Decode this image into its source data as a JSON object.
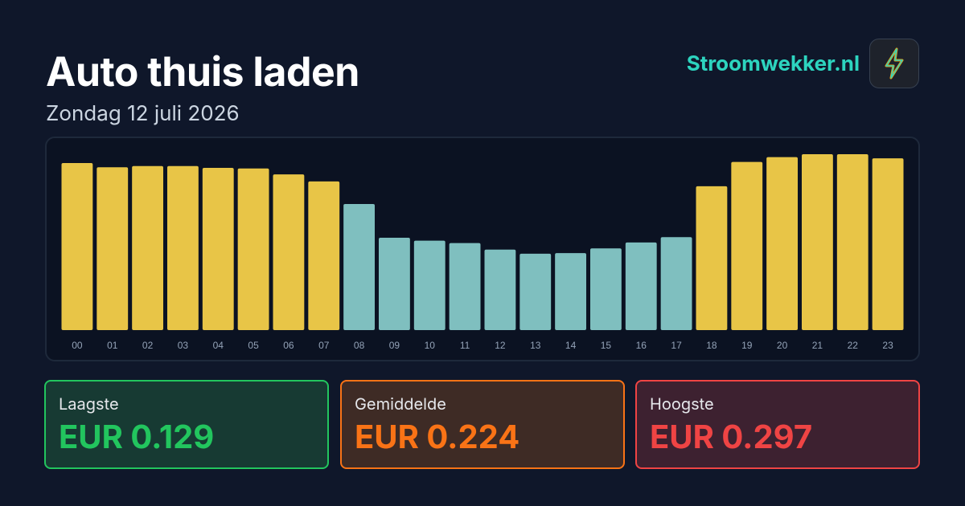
{
  "header": {
    "title": "Auto thuis laden",
    "subtitle": "Zondag 12 juli 2026",
    "brand": "Stroomwekker.nl"
  },
  "chart_data": {
    "type": "bar",
    "categories": [
      "00",
      "01",
      "02",
      "03",
      "04",
      "05",
      "06",
      "07",
      "08",
      "09",
      "10",
      "11",
      "12",
      "13",
      "14",
      "15",
      "16",
      "17",
      "18",
      "19",
      "20",
      "21",
      "22",
      "23"
    ],
    "values": [
      0.282,
      0.275,
      0.277,
      0.277,
      0.274,
      0.273,
      0.263,
      0.251,
      0.213,
      0.156,
      0.151,
      0.147,
      0.136,
      0.129,
      0.13,
      0.138,
      0.148,
      0.157,
      0.243,
      0.284,
      0.292,
      0.297,
      0.297,
      0.29
    ],
    "colors": [
      "#e8c547",
      "#e8c547",
      "#e8c547",
      "#e8c547",
      "#e8c547",
      "#e8c547",
      "#e8c547",
      "#e8c547",
      "#7fbfbf",
      "#7fbfbf",
      "#7fbfbf",
      "#7fbfbf",
      "#7fbfbf",
      "#7fbfbf",
      "#7fbfbf",
      "#7fbfbf",
      "#7fbfbf",
      "#7fbfbf",
      "#e8c547",
      "#e8c547",
      "#e8c547",
      "#e8c547",
      "#e8c547",
      "#e8c547"
    ]
  },
  "stats": [
    {
      "label": "Laagste",
      "value": "EUR 0.129"
    },
    {
      "label": "Gemiddelde",
      "value": "EUR 0.224"
    },
    {
      "label": "Hoogste",
      "value": "EUR 0.297"
    }
  ]
}
